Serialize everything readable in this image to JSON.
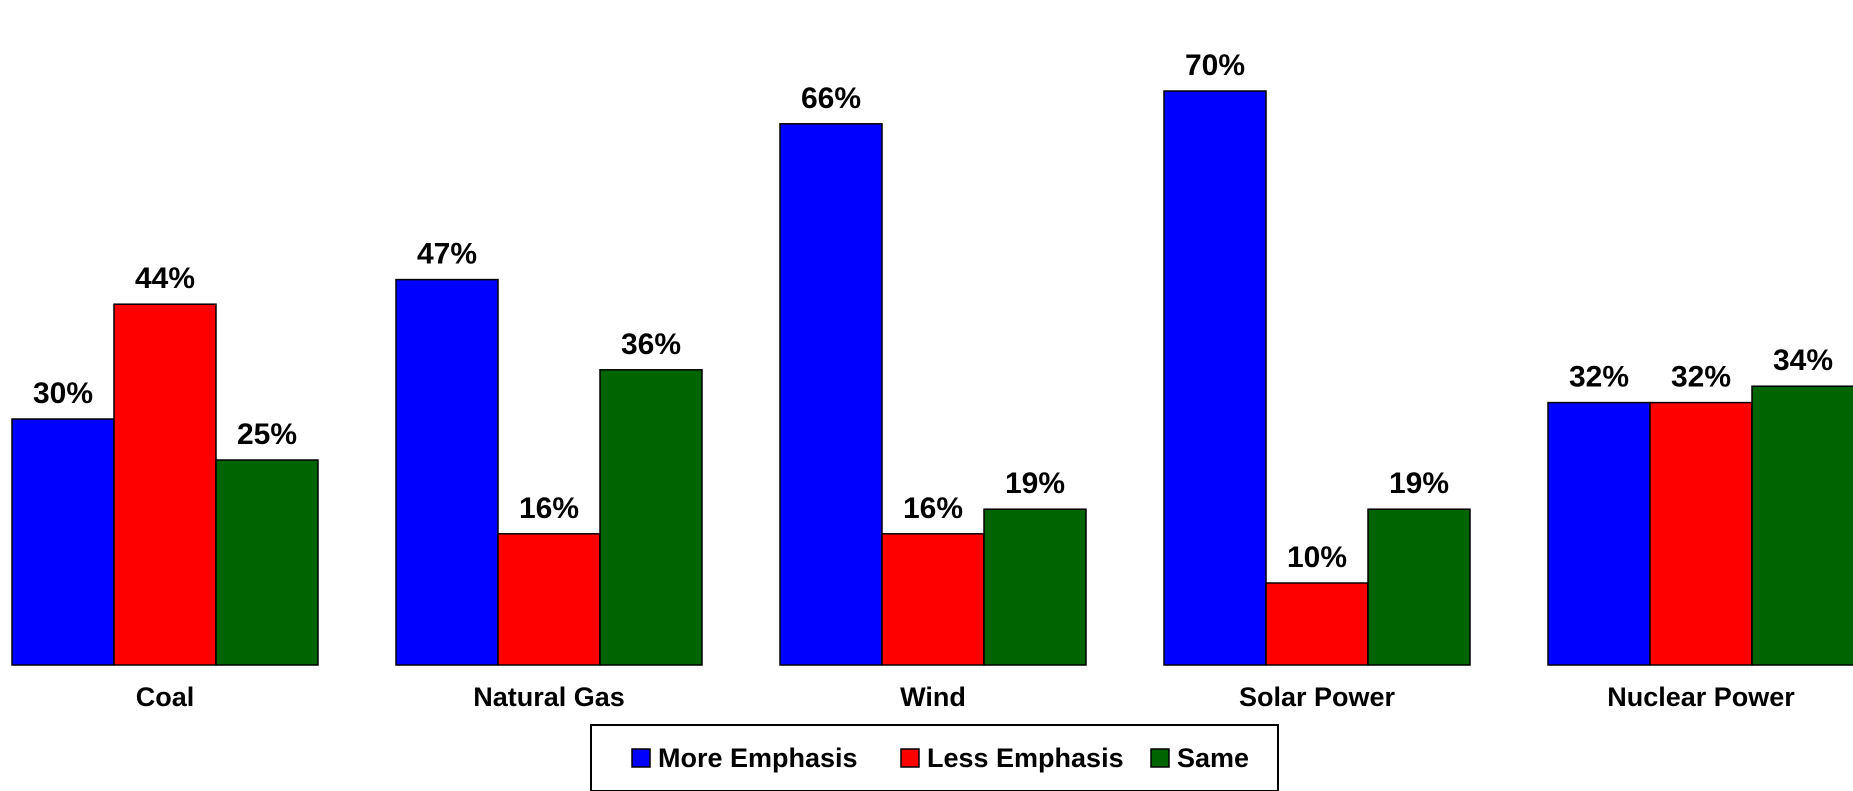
{
  "chart_data": {
    "type": "bar",
    "categories": [
      "Coal",
      "Natural Gas",
      "Wind",
      "Solar Power",
      "Nuclear Power"
    ],
    "series": [
      {
        "name": "More Emphasis",
        "color": "#0000FF",
        "values": [
          30,
          47,
          66,
          70,
          32
        ],
        "labels": [
          "30%",
          "47%",
          "66%",
          "70%",
          "32%"
        ]
      },
      {
        "name": "Less Emphasis",
        "color": "#FF0000",
        "values": [
          44,
          16,
          16,
          10,
          32
        ],
        "labels": [
          "44%",
          "16%",
          "16%",
          "10%",
          "32%"
        ]
      },
      {
        "name": "Same",
        "color": "#006400",
        "values": [
          25,
          36,
          19,
          19,
          34
        ],
        "labels": [
          "25%",
          "36%",
          "19%",
          "19%",
          "34%"
        ]
      }
    ],
    "ylim": [
      0,
      76
    ],
    "grid": false,
    "axes_visible": false,
    "legend_position": "bottom-center"
  }
}
